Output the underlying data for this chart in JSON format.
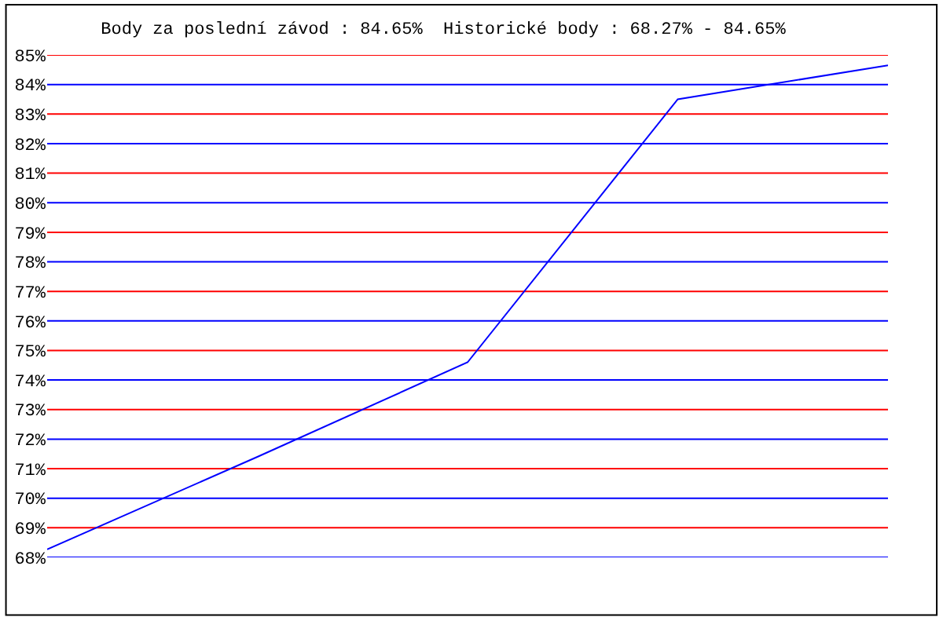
{
  "chart_data": {
    "type": "line",
    "title": "Body za poslední závod : 84.65%  Historické body : 68.27% - 84.65%",
    "categories": [
      null,
      null,
      null,
      null,
      null
    ],
    "series": [
      {
        "color": "#0000ff",
        "values": [
          68.27,
          71.4,
          74.6,
          83.5,
          84.65
        ]
      }
    ],
    "ylim": [
      68,
      85
    ],
    "yticks": [
      {
        "value": 68,
        "label": "68%"
      },
      {
        "value": 69,
        "label": "69%"
      },
      {
        "value": 70,
        "label": "70%"
      },
      {
        "value": 71,
        "label": "71%"
      },
      {
        "value": 72,
        "label": "72%"
      },
      {
        "value": 73,
        "label": "73%"
      },
      {
        "value": 74,
        "label": "74%"
      },
      {
        "value": 75,
        "label": "75%"
      },
      {
        "value": 76,
        "label": "76%"
      },
      {
        "value": 77,
        "label": "77%"
      },
      {
        "value": 78,
        "label": "78%"
      },
      {
        "value": 79,
        "label": "79%"
      },
      {
        "value": 80,
        "label": "80%"
      },
      {
        "value": 81,
        "label": "81%"
      },
      {
        "value": 82,
        "label": "82%"
      },
      {
        "value": 83,
        "label": "83%"
      },
      {
        "value": 84,
        "label": "84%"
      },
      {
        "value": 85,
        "label": "85%"
      }
    ],
    "grid": "y",
    "tick_labels": "y",
    "legend": false,
    "marker": "none",
    "line_style": "solid"
  }
}
